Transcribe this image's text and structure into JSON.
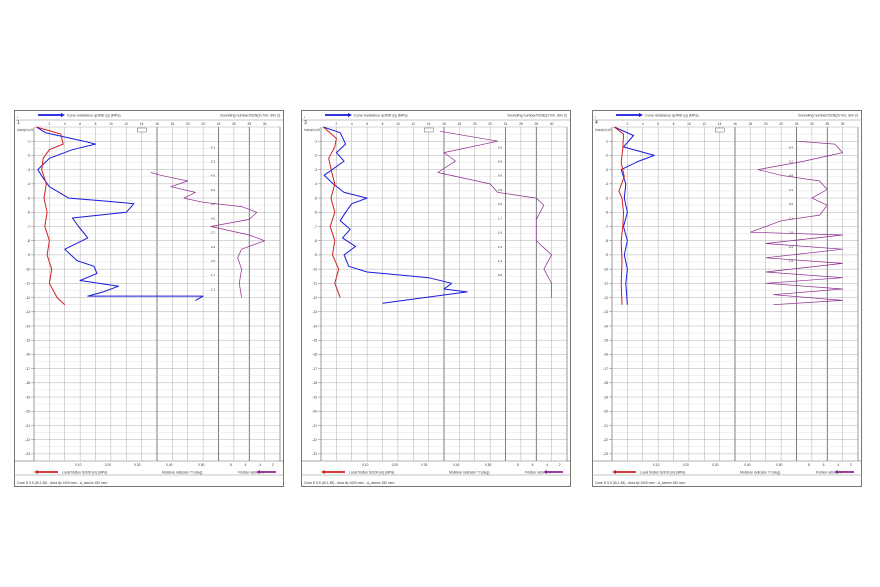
{
  "chart_data": [
    {
      "type": "line",
      "panel_label": "1",
      "ylabel": "Sounding length in (m) to NN",
      "top_legend": "Cone resistance qc/MD (q) (MPa)",
      "top_right": "Sounding number/CEN(2x?ml, dim 2)",
      "bottom_legend": "Local friction fs/100 (m) (MPa)",
      "bottom_mid": "Moisture indicator ?? (deg)",
      "bottom_right": "Friction ratio in %",
      "footer": "Cone D 5.5 (W-1.83) - Area tip 1000 mm² - A_sleeve 150 mm²",
      "top_ticks": [
        "2",
        "4",
        "6",
        "8",
        "10",
        "12",
        "14",
        "16",
        "18",
        "20",
        "22",
        "24",
        "26",
        "28",
        "30"
      ],
      "bottom_ticks": [
        "0.10",
        "0.20",
        "0.30",
        "0.40",
        "0.50",
        "8",
        "6",
        "4",
        "2"
      ],
      "depth_ticks": [
        "-1",
        "-2",
        "-3",
        "-4",
        "-5",
        "-6",
        "-7",
        "-8",
        "-9",
        "-10",
        "-11",
        "-12",
        "-13",
        "-14",
        "-15",
        "-16",
        "-17",
        "-18",
        "-19",
        "-20",
        "-21",
        "-22",
        "-23"
      ],
      "series": [
        {
          "role": "cone",
          "color": "#1a1adc",
          "points": [
            [
              0.3,
              0
            ],
            [
              1.5,
              0.4
            ],
            [
              6.5,
              1.0
            ],
            [
              8,
              1.2
            ],
            [
              5,
              1.6
            ],
            [
              2,
              2.2
            ],
            [
              0.5,
              3.0
            ],
            [
              1.2,
              3.6
            ],
            [
              2,
              4.2
            ],
            [
              4.5,
              5.0
            ],
            [
              9,
              5.2
            ],
            [
              13,
              5.4
            ],
            [
              12,
              6.0
            ],
            [
              5,
              6.4
            ],
            [
              5.8,
              7.0
            ],
            [
              7,
              7.8
            ],
            [
              4,
              8.6
            ],
            [
              5.6,
              9.4
            ],
            [
              7.8,
              9.8
            ],
            [
              8.2,
              10.3
            ],
            [
              6,
              10.8
            ],
            [
              11,
              11.2
            ],
            [
              9,
              11.6
            ],
            [
              7,
              11.9
            ],
            [
              22,
              11.9
            ],
            [
              21,
              12.2
            ]
          ]
        },
        {
          "role": "friction",
          "color": "#d22020",
          "points": [
            [
              0.3,
              0
            ],
            [
              3.5,
              0.5
            ],
            [
              3.8,
              1.2
            ],
            [
              2,
              1.6
            ],
            [
              1.2,
              2.2
            ],
            [
              1,
              3.0
            ],
            [
              1.6,
              4.0
            ],
            [
              1.3,
              5.0
            ],
            [
              1.7,
              6.0
            ],
            [
              1.4,
              7.0
            ],
            [
              2.0,
              8.0
            ],
            [
              1.7,
              9.0
            ],
            [
              2.3,
              10.0
            ],
            [
              2.0,
              11.0
            ],
            [
              3.0,
              12.0
            ],
            [
              4.0,
              12.5
            ]
          ]
        },
        {
          "role": "ratio",
          "color": "#8e2a8e",
          "points": [
            [
              15.2,
              3.2
            ],
            [
              16.5,
              3.4
            ],
            [
              20,
              3.8
            ],
            [
              17.8,
              4.2
            ],
            [
              21,
              4.6
            ],
            [
              19.5,
              5.0
            ],
            [
              22,
              5.3
            ],
            [
              27,
              5.6
            ],
            [
              29,
              6.0
            ],
            [
              28,
              6.5
            ],
            [
              23,
              7.0
            ],
            [
              28,
              7.6
            ],
            [
              30,
              8.0
            ],
            [
              27,
              8.6
            ],
            [
              26.5,
              9.2
            ],
            [
              27,
              10.0
            ],
            [
              26.7,
              11.0
            ],
            [
              27,
              12.0
            ]
          ]
        }
      ],
      "profile_labels": [
        "6.1",
        "5.3",
        "4.9",
        "5.2",
        "4.6",
        "4.0",
        "3.7",
        "3.4",
        "2.5",
        "1.7",
        "1.3"
      ]
    },
    {
      "type": "line",
      "panel_label": "3",
      "ylabel": "Sounding length in (m) to NN",
      "top_legend": "Cone resistance qc/MD (q) (MPa)",
      "top_right": "Sounding number/CEN(2x?ml, dim 2)",
      "bottom_legend": "Local friction fs/100 (m) (MPa)",
      "bottom_mid": "Moisture indicator ?? (deg)",
      "bottom_right": "Friction ratio in %",
      "footer": "Cone D 5.5 (W-1.83) - Area tip 1000 mm² - A_sleeve 150 mm²",
      "top_ticks": [
        "2",
        "4",
        "6",
        "8",
        "10",
        "12",
        "14",
        "16",
        "18",
        "20",
        "22",
        "24",
        "26",
        "28",
        "30"
      ],
      "bottom_ticks": [
        "0.10",
        "0.20",
        "0.30",
        "0.40",
        "0.50",
        "8",
        "6",
        "4",
        "2"
      ],
      "depth_ticks": [
        "-1",
        "-2",
        "-3",
        "-4",
        "-5",
        "-6",
        "-7",
        "-8",
        "-9",
        "-10",
        "-11",
        "-12",
        "-13",
        "-14",
        "-15",
        "-16",
        "-17",
        "-18",
        "-19",
        "-20",
        "-21",
        "-22",
        "-23"
      ],
      "series": [
        {
          "role": "cone",
          "color": "#1a1adc",
          "points": [
            [
              0.3,
              0
            ],
            [
              2.5,
              0.4
            ],
            [
              3.2,
              1.2
            ],
            [
              2,
              1.8
            ],
            [
              3,
              2.4
            ],
            [
              0.4,
              3.4
            ],
            [
              1.6,
              4.0
            ],
            [
              3.0,
              4.6
            ],
            [
              6,
              5.0
            ],
            [
              4.0,
              5.4
            ],
            [
              3.2,
              6.0
            ],
            [
              2.5,
              6.6
            ],
            [
              3.8,
              7.2
            ],
            [
              2.8,
              7.8
            ],
            [
              4.5,
              8.4
            ],
            [
              3,
              9.0
            ],
            [
              3.6,
              9.8
            ],
            [
              6,
              10.2
            ],
            [
              14,
              10.6
            ],
            [
              17,
              11.0
            ],
            [
              16,
              11.4
            ],
            [
              19,
              11.6
            ],
            [
              8,
              12.4
            ]
          ]
        },
        {
          "role": "friction",
          "color": "#d22020",
          "points": [
            [
              0.3,
              0
            ],
            [
              2.0,
              0.8
            ],
            [
              1.8,
              1.4
            ],
            [
              1.0,
              2.2
            ],
            [
              1.4,
              3.2
            ],
            [
              1.8,
              4.0
            ],
            [
              1.3,
              5.0
            ],
            [
              1.8,
              6.0
            ],
            [
              1.2,
              7.0
            ],
            [
              1.8,
              8.0
            ],
            [
              1.5,
              9.0
            ],
            [
              2.3,
              10.0
            ],
            [
              1.8,
              11.0
            ],
            [
              2.5,
              12.0
            ]
          ]
        },
        {
          "role": "ratio",
          "color": "#8e2a8e",
          "points": [
            [
              15.5,
              0.3
            ],
            [
              23,
              1.0
            ],
            [
              16,
              1.8
            ],
            [
              17.5,
              2.4
            ],
            [
              15.2,
              3.2
            ],
            [
              22,
              4.0
            ],
            [
              23,
              4.6
            ],
            [
              28,
              5.0
            ],
            [
              29,
              5.5
            ],
            [
              28,
              6.5
            ],
            [
              28,
              8.0
            ],
            [
              30,
              9.0
            ],
            [
              29,
              10.0
            ],
            [
              30,
              11.0
            ],
            [
              30,
              12.0
            ]
          ]
        }
      ],
      "profile_labels": [
        "6.2",
        "4.9",
        "4.6",
        "3.9",
        "2.8",
        "1.7",
        "1.4",
        "1.5",
        "1.4",
        "0.8"
      ]
    },
    {
      "type": "line",
      "panel_label": "4",
      "ylabel": "Sounding length in (m) to NN",
      "top_legend": "Cone resistance qc/MD (q) (MPa)",
      "top_right": "Sounding number/CEN(2x?ml, dim 2)",
      "bottom_legend": "Local friction fs/100 (m) (MPa)",
      "bottom_mid": "Moisture indicator ?? (deg)",
      "bottom_right": "Friction ratio in %",
      "footer": "Cone D 5.5 (W-1.83) - Area tip 1000 mm² - A_sleeve 150 mm²",
      "top_ticks": [
        "2",
        "4",
        "6",
        "8",
        "10",
        "12",
        "14",
        "16",
        "18",
        "20",
        "22",
        "24",
        "26",
        "28",
        "30"
      ],
      "bottom_ticks": [
        "0.10",
        "0.20",
        "0.30",
        "0.40",
        "0.50",
        "8",
        "6",
        "4",
        "2"
      ],
      "depth_ticks": [
        "-1",
        "-2",
        "-3",
        "-4",
        "-5",
        "-6",
        "-7",
        "-8",
        "-9",
        "-10",
        "-11",
        "-12",
        "-13",
        "-14",
        "-15",
        "-16",
        "-17",
        "-18",
        "-19",
        "-20",
        "-21",
        "-22",
        "-23"
      ],
      "series": [
        {
          "role": "cone",
          "color": "#1a1adc",
          "points": [
            [
              0.3,
              0
            ],
            [
              2.8,
              0.6
            ],
            [
              1.5,
              1.4
            ],
            [
              5.5,
              2.0
            ],
            [
              3.5,
              2.4
            ],
            [
              1.2,
              3.0
            ],
            [
              1.8,
              4.0
            ],
            [
              1.6,
              5.0
            ],
            [
              2.0,
              6.0
            ],
            [
              1.5,
              7.0
            ],
            [
              2.0,
              8.0
            ],
            [
              1.6,
              9.0
            ],
            [
              2.0,
              10.0
            ],
            [
              1.8,
              11.0
            ],
            [
              2.0,
              12.5
            ]
          ]
        },
        {
          "role": "friction",
          "color": "#d22020",
          "points": [
            [
              0.3,
              0
            ],
            [
              1.5,
              0.5
            ],
            [
              1.4,
              1.5
            ],
            [
              1.2,
              2.5
            ],
            [
              1.6,
              3.5
            ],
            [
              0.9,
              4.5
            ],
            [
              1.3,
              5.0
            ],
            [
              1.5,
              6.0
            ],
            [
              1.4,
              7.0
            ],
            [
              1.2,
              8.0
            ],
            [
              1.3,
              9.5
            ],
            [
              1.2,
              11.0
            ],
            [
              1.3,
              12.5
            ]
          ]
        },
        {
          "role": "ratio",
          "color": "#8e2a8e",
          "points": [
            [
              24,
              1.0
            ],
            [
              29,
              1.2
            ],
            [
              30,
              1.8
            ],
            [
              25,
              2.4
            ],
            [
              19,
              3.0
            ],
            [
              22,
              3.4
            ],
            [
              27,
              3.8
            ],
            [
              28,
              4.4
            ],
            [
              26,
              5.0
            ],
            [
              28,
              5.5
            ],
            [
              27,
              6.2
            ],
            [
              22,
              6.6
            ],
            [
              18,
              7.4
            ],
            [
              30,
              7.6
            ],
            [
              20,
              8.2
            ],
            [
              30,
              8.6
            ],
            [
              20,
              9.2
            ],
            [
              30,
              9.6
            ],
            [
              20,
              10.2
            ],
            [
              30,
              10.6
            ],
            [
              20,
              11.0
            ],
            [
              30,
              11.4
            ],
            [
              21,
              11.8
            ],
            [
              30,
              12.2
            ],
            [
              21,
              12.5
            ]
          ]
        }
      ],
      "profile_labels": [
        "6.4",
        "5.2",
        "4.8",
        "4.3",
        "3.5",
        "3.3",
        "2.8",
        "2.2",
        "1.8"
      ]
    }
  ]
}
